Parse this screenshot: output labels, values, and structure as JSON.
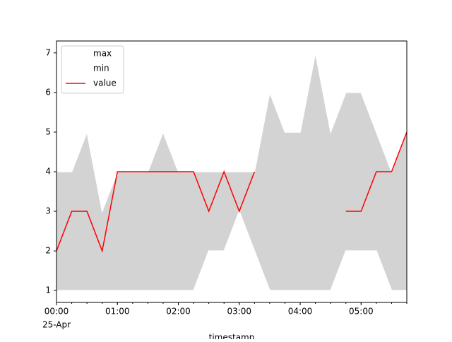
{
  "chart_data": {
    "type": "line",
    "x": [
      "00:00",
      "00:15",
      "00:30",
      "00:45",
      "01:00",
      "01:15",
      "01:30",
      "01:45",
      "02:00",
      "02:15",
      "02:30",
      "02:45",
      "03:00",
      "03:15",
      "03:30",
      "03:45",
      "04:00",
      "04:15",
      "04:30",
      "04:45",
      "05:00",
      "05:15",
      "05:30",
      "05:45"
    ],
    "series": [
      {
        "name": "max",
        "color": "#ffffff",
        "values": [
          4,
          4,
          5,
          3,
          4,
          4,
          4,
          5,
          4,
          4,
          4,
          4,
          4,
          4,
          6,
          5,
          5,
          7,
          5,
          6,
          6,
          5,
          4,
          5
        ]
      },
      {
        "name": "min",
        "color": "#ffffff",
        "values": [
          1,
          1,
          1,
          1,
          1,
          1,
          1,
          1,
          1,
          1,
          2,
          2,
          3,
          2,
          1,
          1,
          1,
          1,
          1,
          2,
          2,
          2,
          1,
          1
        ]
      },
      {
        "name": "value",
        "color": "#ff0000",
        "values": [
          2,
          3,
          3,
          2,
          4,
          4,
          4,
          4,
          4,
          4,
          3,
          4,
          3,
          4,
          null,
          null,
          null,
          null,
          null,
          3,
          3,
          4,
          4,
          5
        ]
      }
    ],
    "fill_color": "#d3d3d3",
    "xlabel": "timestamp",
    "date_label": "25-Apr",
    "xlim": [
      "00:00",
      "05:45"
    ],
    "xticks": [
      "00:00",
      "01:00",
      "02:00",
      "03:00",
      "04:00",
      "05:00"
    ],
    "ylim": [
      0.7,
      7.3
    ],
    "yticks": [
      1,
      2,
      3,
      4,
      5,
      6,
      7
    ],
    "legend": "upper left"
  }
}
